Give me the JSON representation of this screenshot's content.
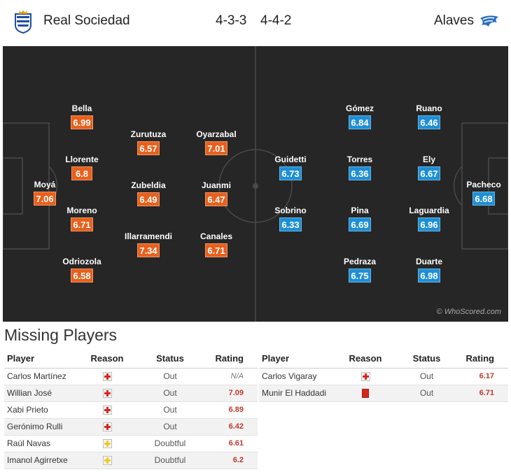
{
  "header": {
    "home_team": "Real Sociedad",
    "away_team": "Alaves",
    "home_formation": "4-3-3",
    "away_formation": "4-4-2",
    "home_logo_icon": "real-sociedad-crest",
    "away_logo_icon": "alaves-crest"
  },
  "pitch": {
    "watermark": "© WhoScored.com",
    "home_players": [
      {
        "name": "Moyá",
        "rating": "7.06"
      },
      {
        "name": "Bella",
        "rating": "6.99"
      },
      {
        "name": "Llorente",
        "rating": "6.8"
      },
      {
        "name": "Moreno",
        "rating": "6.71"
      },
      {
        "name": "Odriozola",
        "rating": "6.58"
      },
      {
        "name": "Zurutuza",
        "rating": "6.57"
      },
      {
        "name": "Zubeldia",
        "rating": "6.49"
      },
      {
        "name": "Illarramendi",
        "rating": "7.34"
      },
      {
        "name": "Oyarzabal",
        "rating": "7.01"
      },
      {
        "name": "Juanmi",
        "rating": "6.47"
      },
      {
        "name": "Canales",
        "rating": "6.71"
      }
    ],
    "away_players": [
      {
        "name": "Guidetti",
        "rating": "6.73"
      },
      {
        "name": "Sobrino",
        "rating": "6.33"
      },
      {
        "name": "Gómez",
        "rating": "6.84"
      },
      {
        "name": "Torres",
        "rating": "6.36"
      },
      {
        "name": "Pina",
        "rating": "6.69"
      },
      {
        "name": "Pedraza",
        "rating": "6.75"
      },
      {
        "name": "Ruano",
        "rating": "6.46"
      },
      {
        "name": "Ely",
        "rating": "6.67"
      },
      {
        "name": "Laguardia",
        "rating": "6.96"
      },
      {
        "name": "Duarte",
        "rating": "6.98"
      },
      {
        "name": "Pacheco",
        "rating": "6.68"
      }
    ]
  },
  "missing": {
    "title": "Missing Players",
    "columns": {
      "player": "Player",
      "reason": "Reason",
      "status": "Status",
      "rating": "Rating"
    },
    "home": [
      {
        "player": "Carlos Martínez",
        "reason": "injury",
        "status": "Out",
        "rating": "N/A"
      },
      {
        "player": "Willian José",
        "reason": "injury",
        "status": "Out",
        "rating": "7.09"
      },
      {
        "player": "Xabi Prieto",
        "reason": "injury",
        "status": "Out",
        "rating": "6.89"
      },
      {
        "player": "Gerónimo Rulli",
        "reason": "injury",
        "status": "Out",
        "rating": "6.42"
      },
      {
        "player": "Raúl Navas",
        "reason": "doubt",
        "status": "Doubtful",
        "rating": "6.61"
      },
      {
        "player": "Imanol Agirretxe",
        "reason": "doubt",
        "status": "Doubtful",
        "rating": "6.2"
      }
    ],
    "away": [
      {
        "player": "Carlos Vigaray",
        "reason": "injury",
        "status": "Out",
        "rating": "6.17"
      },
      {
        "player": "Munir El Haddadi",
        "reason": "red-card",
        "status": "Out",
        "rating": "6.71"
      }
    ]
  },
  "colors": {
    "home_rating": "#e8601c",
    "away_rating": "#1e8fd6",
    "pitch": "#262626",
    "rating_text": "#c0392b"
  }
}
